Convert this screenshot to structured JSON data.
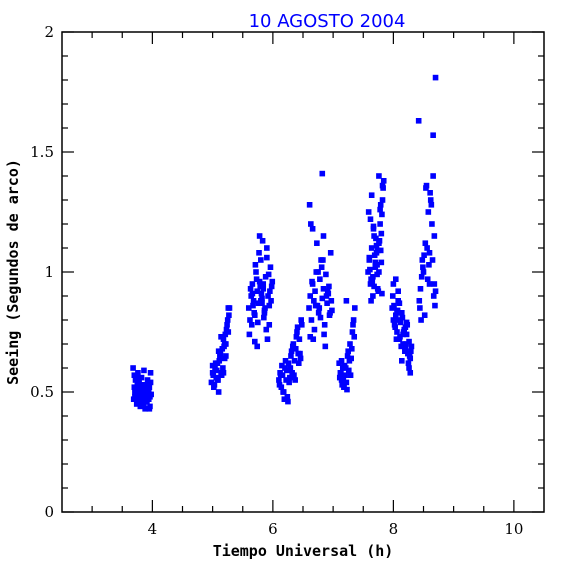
{
  "chart_data": {
    "type": "scatter",
    "title": "10 AGOSTO 2004",
    "xlabel": "Tiempo Universal (h)",
    "ylabel": "Seeing (Segundos de arco)",
    "xlim": [
      2.5,
      10.5
    ],
    "ylim": [
      0,
      2
    ],
    "xticks_major": [
      4,
      6,
      8,
      10
    ],
    "yticks_major": [
      0,
      0.5,
      1,
      1.5,
      2
    ],
    "xtick_labels": [
      "4",
      "6",
      "8",
      "10"
    ],
    "ytick_labels": [
      "0",
      "0.5",
      "1",
      "1.5",
      "2"
    ],
    "grid": false,
    "marker": "square",
    "color": "#0000ff",
    "series": [
      {
        "x": [
          3.68,
          3.7,
          3.71,
          3.72,
          3.73,
          3.74,
          3.75,
          3.76,
          3.77,
          3.78,
          3.79,
          3.8,
          3.81,
          3.82,
          3.83,
          3.84,
          3.85,
          3.86,
          3.87,
          3.88,
          3.89,
          3.9,
          3.91,
          3.92,
          3.93,
          3.94,
          3.95,
          3.96,
          3.97,
          3.98,
          3.7,
          3.74,
          3.78,
          3.82,
          3.86,
          3.9,
          3.94,
          3.71,
          3.76,
          3.81,
          3.86,
          3.91,
          3.96,
          3.73,
          3.79,
          3.85,
          3.92,
          3.97,
          3.69,
          3.75,
          3.83,
          3.89,
          3.95,
          4.98,
          5.0,
          5.02,
          5.04,
          5.06,
          5.08,
          5.1,
          5.12,
          5.14,
          5.16,
          5.18,
          5.2,
          5.22,
          5.24,
          5.26,
          5.28,
          5.01,
          5.05,
          5.09,
          5.13,
          5.17,
          5.21,
          5.25,
          5.03,
          5.07,
          5.11,
          5.15,
          5.19,
          5.23,
          5.27,
          5.0,
          5.1,
          5.2,
          5.14,
          5.18,
          5.22,
          5.26,
          5.08,
          5.6,
          5.62,
          5.64,
          5.66,
          5.68,
          5.7,
          5.72,
          5.74,
          5.76,
          5.78,
          5.8,
          5.82,
          5.84,
          5.86,
          5.88,
          5.9,
          5.92,
          5.94,
          5.96,
          5.98,
          5.61,
          5.65,
          5.69,
          5.73,
          5.77,
          5.81,
          5.85,
          5.89,
          5.93,
          5.97,
          5.63,
          5.67,
          5.71,
          5.75,
          5.79,
          5.83,
          5.87,
          5.91,
          5.95,
          5.99,
          5.74,
          5.78,
          5.82,
          5.7,
          5.86,
          5.9,
          5.66,
          5.94,
          5.8,
          5.84,
          6.1,
          6.12,
          6.14,
          6.16,
          6.18,
          6.2,
          6.22,
          6.24,
          6.26,
          6.28,
          6.3,
          6.32,
          6.34,
          6.36,
          6.38,
          6.4,
          6.42,
          6.44,
          6.46,
          6.48,
          6.11,
          6.15,
          6.19,
          6.23,
          6.27,
          6.31,
          6.35,
          6.39,
          6.43,
          6.47,
          6.13,
          6.17,
          6.21,
          6.25,
          6.29,
          6.33,
          6.37,
          6.41,
          6.45,
          6.6,
          6.62,
          6.64,
          6.66,
          6.68,
          6.7,
          6.72,
          6.74,
          6.76,
          6.78,
          6.8,
          6.82,
          6.84,
          6.86,
          6.88,
          6.9,
          6.92,
          6.94,
          6.96,
          6.98,
          6.61,
          6.65,
          6.69,
          6.73,
          6.77,
          6.81,
          6.85,
          6.89,
          6.93,
          6.97,
          6.63,
          6.67,
          6.71,
          6.75,
          6.79,
          6.83,
          6.87,
          6.91,
          6.95,
          6.82,
          6.84,
          6.62,
          6.66,
          7.1,
          7.12,
          7.14,
          7.16,
          7.18,
          7.2,
          7.22,
          7.24,
          7.26,
          7.28,
          7.3,
          7.32,
          7.34,
          7.36,
          7.11,
          7.15,
          7.19,
          7.23,
          7.27,
          7.31,
          7.35,
          7.13,
          7.17,
          7.21,
          7.25,
          7.29,
          7.33,
          7.14,
          7.18,
          7.22,
          7.58,
          7.6,
          7.62,
          7.64,
          7.66,
          7.68,
          7.7,
          7.72,
          7.74,
          7.76,
          7.78,
          7.8,
          7.82,
          7.84,
          7.59,
          7.63,
          7.67,
          7.71,
          7.75,
          7.79,
          7.83,
          7.61,
          7.65,
          7.69,
          7.73,
          7.77,
          7.81,
          7.6,
          7.64,
          7.68,
          7.72,
          7.76,
          7.8,
          7.62,
          7.66,
          7.7,
          7.74,
          7.78,
          7.82,
          7.76,
          7.79,
          7.71,
          7.63,
          7.67,
          7.81,
          7.73,
          7.98,
          8.0,
          8.02,
          8.04,
          8.06,
          8.08,
          8.1,
          8.12,
          8.14,
          8.16,
          8.18,
          8.2,
          8.22,
          8.24,
          8.26,
          8.28,
          8.3,
          7.99,
          8.03,
          8.07,
          8.11,
          8.15,
          8.19,
          8.23,
          8.27,
          8.01,
          8.05,
          8.09,
          8.13,
          8.17,
          8.21,
          8.25,
          8.29,
          8.04,
          8.1,
          8.16,
          8.22,
          8.28,
          8.08,
          8.14,
          8.2,
          8.26,
          8.0,
          8.06,
          8.42,
          8.44,
          8.46,
          8.48,
          8.5,
          8.52,
          8.54,
          8.56,
          8.58,
          8.6,
          8.62,
          8.64,
          8.66,
          8.68,
          8.7,
          8.43,
          8.47,
          8.51,
          8.55,
          8.59,
          8.63,
          8.67,
          8.45,
          8.49,
          8.53,
          8.57,
          8.61,
          8.65,
          8.69,
          8.66,
          8.68,
          8.7,
          8.6
        ],
        "y": [
          0.6,
          0.52,
          0.48,
          0.55,
          0.5,
          0.47,
          0.53,
          0.58,
          0.46,
          0.51,
          0.49,
          0.44,
          0.52,
          0.56,
          0.47,
          0.5,
          0.45,
          0.53,
          0.48,
          0.43,
          0.51,
          0.49,
          0.46,
          0.55,
          0.5,
          0.47,
          0.52,
          0.44,
          0.58,
          0.49,
          0.57,
          0.45,
          0.54,
          0.48,
          0.59,
          0.46,
          0.51,
          0.5,
          0.55,
          0.47,
          0.45,
          0.53,
          0.48,
          0.49,
          0.52,
          0.46,
          0.5,
          0.54,
          0.47,
          0.56,
          0.51,
          0.48,
          0.43,
          0.54,
          0.58,
          0.52,
          0.6,
          0.56,
          0.62,
          0.5,
          0.65,
          0.58,
          0.68,
          0.72,
          0.64,
          0.7,
          0.78,
          0.75,
          0.85,
          0.57,
          0.62,
          0.55,
          0.66,
          0.6,
          0.74,
          0.8,
          0.53,
          0.59,
          0.63,
          0.57,
          0.69,
          0.76,
          0.82,
          0.61,
          0.67,
          0.7,
          0.73,
          0.58,
          0.65,
          0.85,
          0.55,
          0.85,
          0.8,
          0.9,
          0.95,
          0.88,
          0.82,
          1.0,
          0.92,
          0.87,
          0.96,
          1.05,
          0.89,
          0.93,
          0.84,
          0.98,
          1.1,
          0.9,
          0.86,
          1.02,
          0.94,
          0.74,
          0.78,
          0.83,
          0.97,
          1.08,
          0.91,
          0.81,
          0.76,
          0.99,
          0.88,
          0.93,
          0.86,
          1.03,
          0.79,
          0.94,
          1.13,
          0.85,
          0.72,
          0.92,
          0.96,
          0.69,
          1.15,
          0.87,
          0.71,
          0.83,
          1.06,
          0.91,
          0.78,
          0.88,
          0.95,
          0.55,
          0.58,
          0.52,
          0.57,
          0.5,
          0.6,
          0.55,
          0.48,
          0.62,
          0.56,
          0.65,
          0.58,
          0.7,
          0.63,
          0.68,
          0.75,
          0.66,
          0.72,
          0.64,
          0.78,
          0.53,
          0.61,
          0.47,
          0.59,
          0.54,
          0.67,
          0.57,
          0.73,
          0.62,
          0.8,
          0.57,
          0.5,
          0.63,
          0.46,
          0.6,
          0.69,
          0.55,
          0.77,
          0.66,
          0.85,
          0.9,
          0.8,
          0.95,
          0.88,
          0.92,
          1.0,
          0.86,
          0.83,
          0.97,
          1.05,
          0.89,
          0.93,
          0.78,
          0.99,
          0.87,
          0.91,
          0.82,
          1.08,
          0.84,
          1.28,
          0.96,
          0.76,
          1.12,
          0.85,
          1.02,
          0.74,
          0.9,
          0.94,
          0.88,
          1.2,
          0.72,
          0.86,
          1.0,
          0.81,
          1.05,
          0.69,
          0.92,
          0.83,
          1.41,
          1.15,
          0.73,
          1.18,
          0.62,
          0.58,
          0.55,
          0.6,
          0.52,
          0.57,
          0.54,
          0.65,
          0.59,
          0.7,
          0.64,
          0.75,
          0.8,
          0.85,
          0.56,
          0.53,
          0.61,
          0.51,
          0.63,
          0.68,
          0.73,
          0.58,
          0.55,
          0.6,
          0.67,
          0.57,
          0.78,
          0.63,
          0.52,
          0.88,
          1.0,
          1.05,
          0.95,
          1.1,
          0.98,
          1.15,
          1.02,
          1.08,
          0.93,
          1.12,
          1.2,
          1.04,
          1.3,
          1.38,
          1.25,
          0.97,
          1.18,
          1.03,
          0.92,
          1.09,
          1.35,
          1.01,
          0.96,
          1.07,
          0.99,
          1.13,
          1.24,
          1.06,
          1.32,
          0.94,
          1.11,
          1.0,
          1.16,
          1.22,
          0.9,
          1.04,
          1.09,
          1.26,
          1.36,
          1.4,
          1.28,
          1.14,
          0.88,
          1.19,
          0.91,
          1.03,
          0.85,
          0.8,
          0.78,
          0.82,
          0.75,
          0.88,
          0.72,
          0.79,
          0.83,
          0.7,
          0.76,
          0.68,
          0.74,
          0.66,
          0.71,
          0.64,
          0.69,
          0.9,
          0.77,
          0.84,
          0.73,
          0.81,
          0.67,
          0.78,
          0.65,
          0.86,
          0.72,
          0.8,
          0.69,
          0.75,
          0.7,
          0.62,
          0.67,
          0.97,
          0.87,
          0.74,
          0.79,
          0.58,
          0.92,
          0.63,
          0.77,
          0.6,
          0.95,
          0.83,
          1.63,
          0.85,
          0.8,
          1.05,
          1.0,
          0.82,
          1.35,
          1.1,
          1.25,
          0.95,
          1.3,
          1.2,
          1.4,
          1.15,
          1.81,
          0.88,
          0.98,
          1.07,
          1.36,
          1.03,
          1.28,
          0.9,
          0.93,
          1.02,
          1.12,
          0.97,
          1.33,
          1.05,
          0.86,
          1.57,
          0.95,
          0.92,
          1.08
        ]
      }
    ]
  }
}
